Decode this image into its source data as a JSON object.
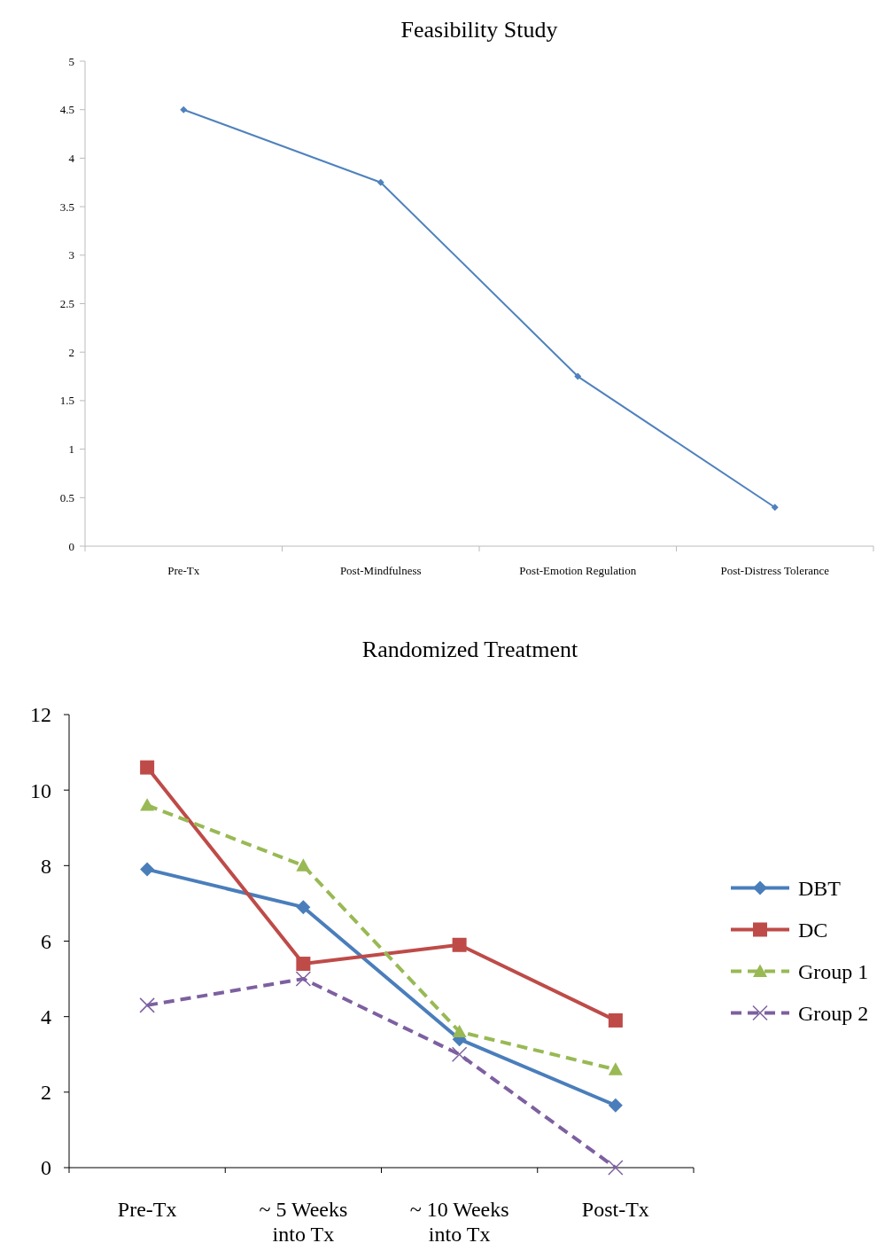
{
  "chart_data": [
    {
      "type": "line",
      "title": "Feasibility Study",
      "categories": [
        "Pre-Tx",
        "Post-Mindfulness",
        "Post-Emotion Regulation",
        "Post-Distress Tolerance"
      ],
      "series": [
        {
          "color": "#4f81bd",
          "values": [
            4.5,
            3.75,
            1.75,
            0.4
          ]
        }
      ],
      "ylim": [
        0,
        5
      ],
      "yticks": [
        0,
        0.5,
        1,
        1.5,
        2,
        2.5,
        3,
        3.5,
        4,
        4.5,
        5
      ],
      "marker": "diamond",
      "line_style": "solid"
    },
    {
      "type": "line",
      "title": "Randomized Treatment",
      "categories": [
        "Pre-Tx",
        "~ 5 Weeks into Tx",
        "~ 10 Weeks into Tx",
        "Post-Tx"
      ],
      "series": [
        {
          "name": "DBT",
          "color": "#4a7ebb",
          "values": [
            7.9,
            6.9,
            3.4,
            1.65
          ],
          "marker": "diamond",
          "line_style": "solid"
        },
        {
          "name": "DC",
          "color": "#be4b48",
          "values": [
            10.6,
            5.4,
            5.9,
            3.9
          ],
          "marker": "square",
          "line_style": "solid"
        },
        {
          "name": "Group 1",
          "color": "#98b954",
          "values": [
            9.6,
            8.0,
            3.6,
            2.6
          ],
          "marker": "triangle",
          "line_style": "dashed"
        },
        {
          "name": "Group 2",
          "color": "#7d60a0",
          "values": [
            4.3,
            5.0,
            3.0,
            0
          ],
          "marker": "cross",
          "line_style": "dashed"
        }
      ],
      "ylim": [
        0,
        12
      ],
      "yticks": [
        0,
        2,
        4,
        6,
        8,
        10,
        12
      ],
      "legend": "right"
    }
  ]
}
